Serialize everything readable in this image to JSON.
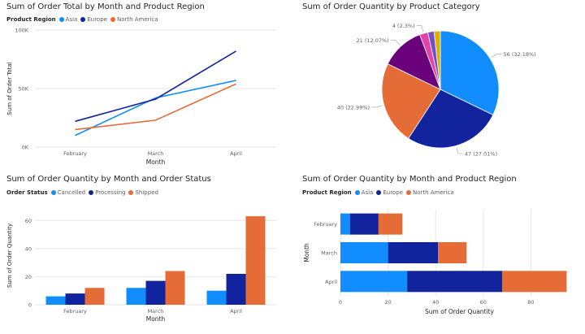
{
  "colors": {
    "Asia": "#118dff",
    "Europe": "#12239e",
    "North America": "#e66c37",
    "Cancelled": "#118dff",
    "Processing": "#12239e",
    "Shipped": "#e66c37",
    "pie": [
      "#118dff",
      "#12239e",
      "#e66c37",
      "#6b007b",
      "#e044a7",
      "#744ec2",
      "#d9b300"
    ]
  },
  "chart_data": [
    {
      "id": "line",
      "type": "line",
      "title": "Sum of Order Total by Month and Product Region",
      "legend_title": "Product Region",
      "legend_position": "top-left",
      "xlabel": "Month",
      "ylabel": "Sum of Order Total",
      "categories": [
        "February",
        "March",
        "April"
      ],
      "ylim": [
        0,
        100000
      ],
      "yticks": [
        {
          "v": 0,
          "label": "0K"
        },
        {
          "v": 50000,
          "label": "50K"
        },
        {
          "v": 100000,
          "label": "100K"
        }
      ],
      "grid": true,
      "series": [
        {
          "name": "Asia",
          "values": [
            10000,
            42000,
            57000
          ]
        },
        {
          "name": "Europe",
          "values": [
            22000,
            41000,
            82000
          ]
        },
        {
          "name": "North America",
          "values": [
            15000,
            23000,
            54000
          ]
        }
      ]
    },
    {
      "id": "pie",
      "type": "pie",
      "title": "Sum of Order Quantity by Product Category",
      "slices": [
        {
          "value": 56,
          "label": "56 (32.18%)"
        },
        {
          "value": 47,
          "label": "47 (27.01%)"
        },
        {
          "value": 40,
          "label": "40 (22.99%)"
        },
        {
          "value": 21,
          "label": "21 (12.07%)"
        },
        {
          "value": 4,
          "label": "4 (2.3%)"
        },
        {
          "value": 3,
          "label": ""
        },
        {
          "value": 3,
          "label": ""
        }
      ]
    },
    {
      "id": "cbar",
      "type": "bar",
      "title": "Sum of Order Quantity by Month and Order Status",
      "legend_title": "Order Status",
      "legend_position": "top-left",
      "xlabel": "Month",
      "ylabel": "Sum of Order Quantity",
      "categories": [
        "February",
        "March",
        "April"
      ],
      "ylim": [
        0,
        70
      ],
      "yticks": [
        0,
        20,
        40,
        60
      ],
      "grid": true,
      "series": [
        {
          "name": "Cancelled",
          "values": [
            6,
            12,
            10
          ]
        },
        {
          "name": "Processing",
          "values": [
            8,
            17,
            22
          ]
        },
        {
          "name": "Shipped",
          "values": [
            12,
            24,
            63
          ]
        }
      ]
    },
    {
      "id": "hbar",
      "type": "bar",
      "orientation": "horizontal-stacked",
      "title": "Sum of Order Quantity by Month and Product Region",
      "legend_title": "Product Region",
      "legend_position": "top-left",
      "xlabel": "Sum of Order Quantity",
      "ylabel": "Month",
      "categories": [
        "February",
        "March",
        "April"
      ],
      "xlim": [
        0,
        100
      ],
      "xticks": [
        0,
        20,
        40,
        60,
        80
      ],
      "grid": true,
      "series": [
        {
          "name": "Asia",
          "values": [
            4,
            20,
            28
          ]
        },
        {
          "name": "Europe",
          "values": [
            12,
            21,
            40
          ]
        },
        {
          "name": "North America",
          "values": [
            10,
            12,
            27
          ]
        }
      ]
    }
  ]
}
